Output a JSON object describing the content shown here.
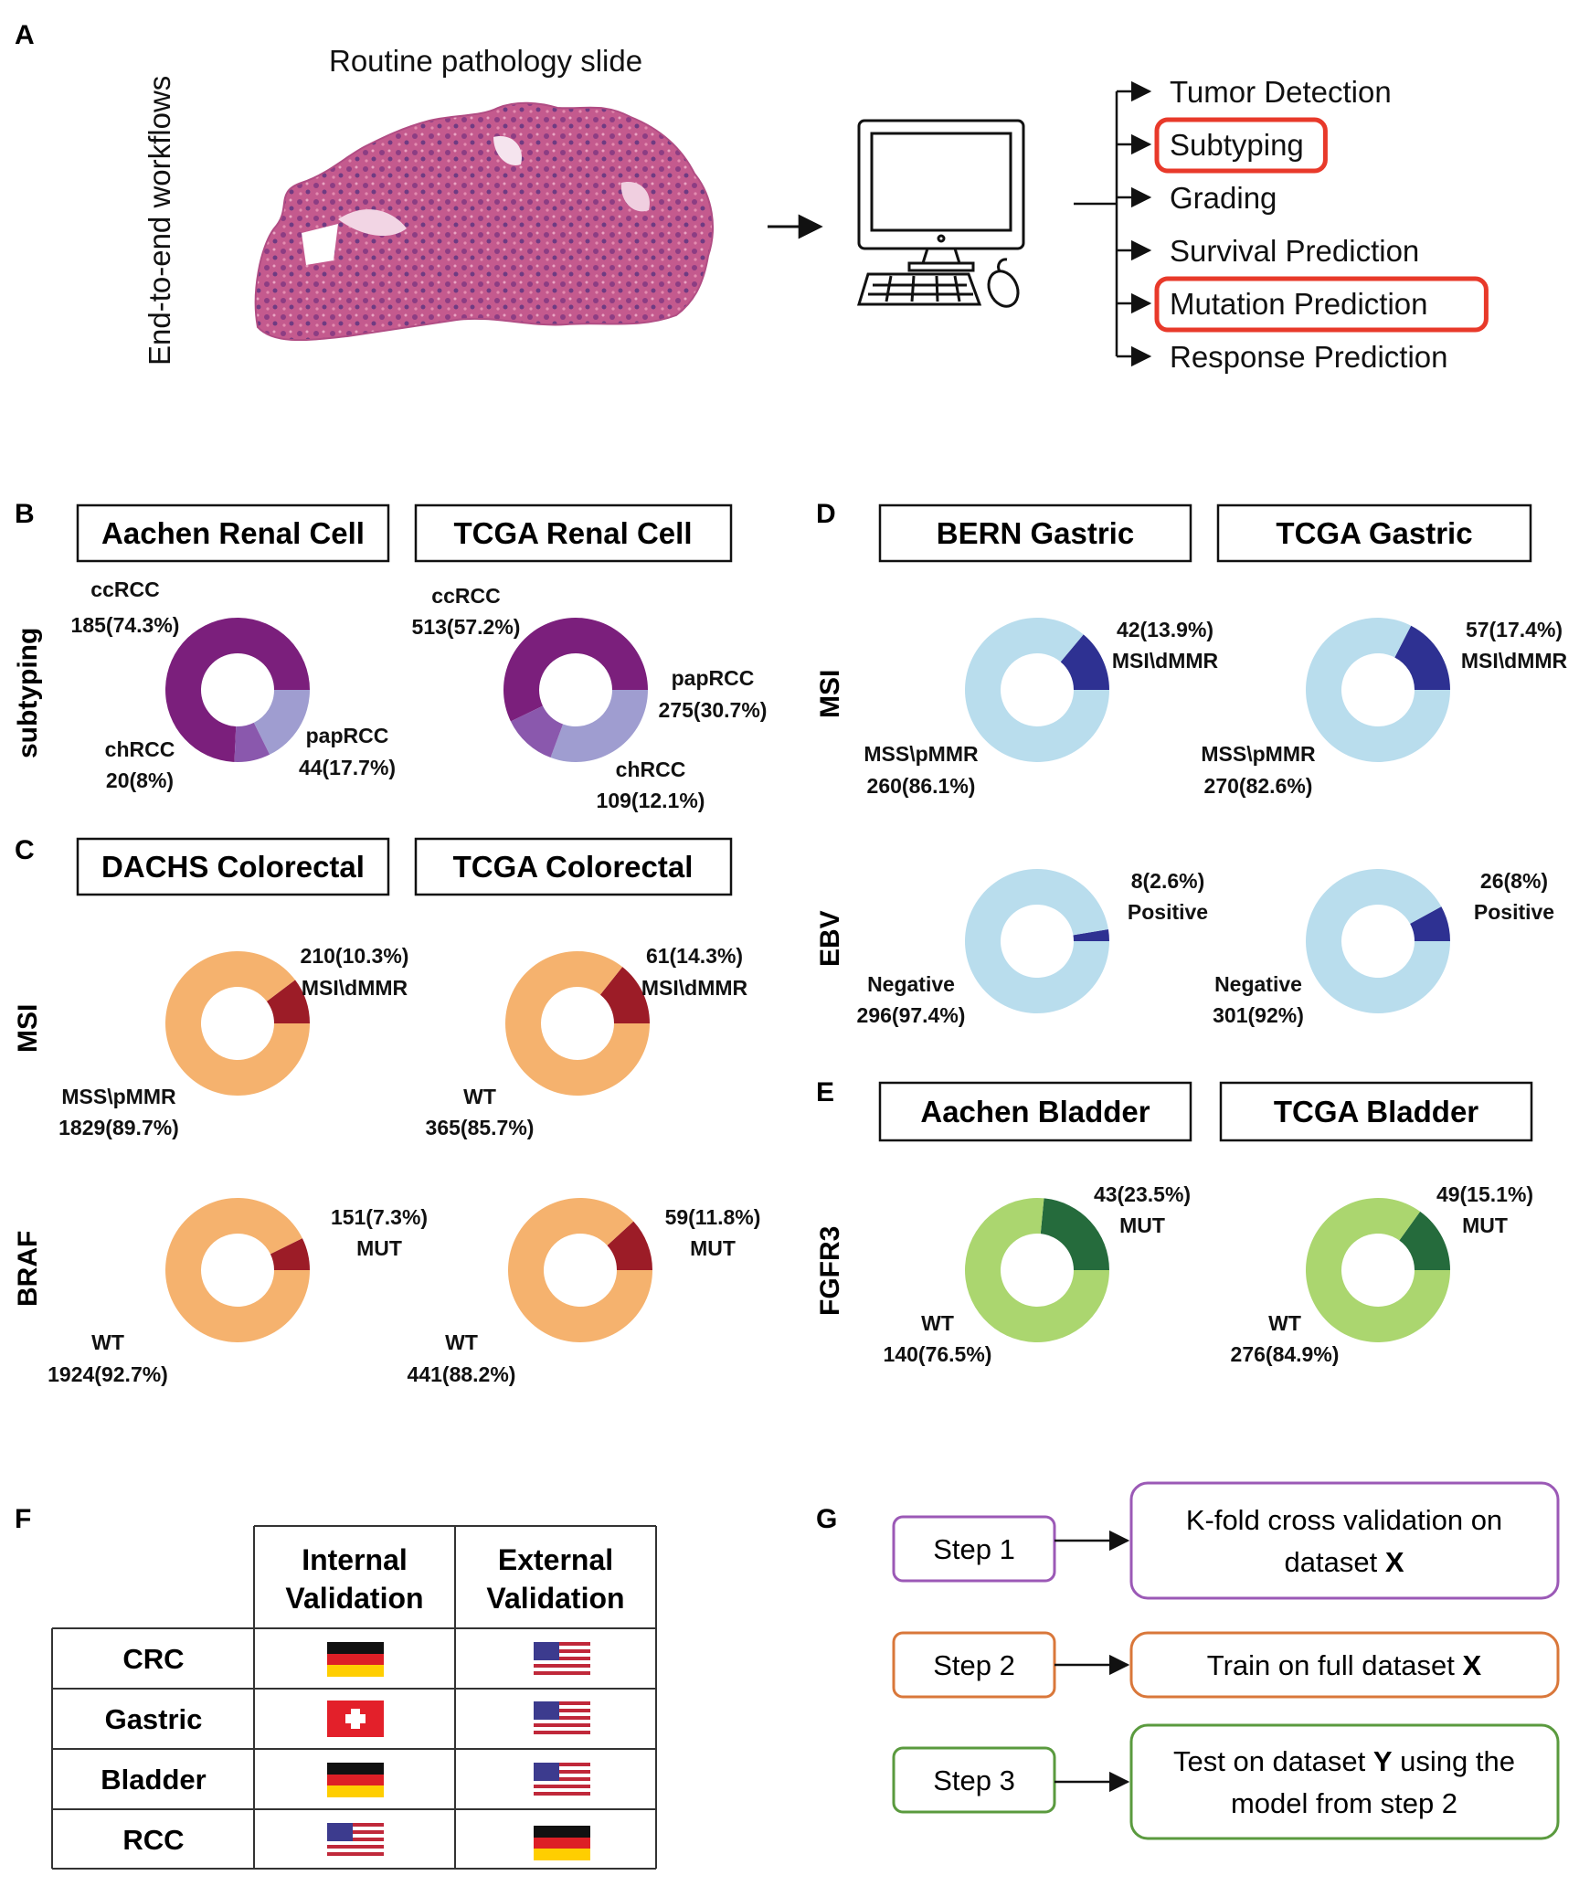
{
  "panel_labels": {
    "a": "A",
    "b": "B",
    "c": "C",
    "d": "D",
    "e": "E",
    "f": "F",
    "g": "G"
  },
  "workflow": {
    "side_label": "End-to-end workflows",
    "slide_title": "Routine pathology slide",
    "outputs": [
      "Tumor Detection",
      "Subtyping",
      "Grading",
      "Survival Prediction",
      "Mutation Prediction",
      "Response Prediction"
    ],
    "highlighted": [
      "Subtyping",
      "Mutation Prediction"
    ],
    "highlight_color": "#e8392a"
  },
  "colors": {
    "rcc_main": "#7b1f7c",
    "rcc_a": "#9f9dd0",
    "rcc_b": "#8a58ad",
    "crc_main": "#f5b26e",
    "crc_minor": "#9c1c27",
    "gastric_main": "#b9dded",
    "gastric_minor": "#2e3192",
    "bladder_main": "#abd66f",
    "bladder_minor": "#256b3c"
  },
  "datasets": {
    "aachen_rcc": "Aachen Renal Cell",
    "tcga_rcc": "TCGA Renal Cell",
    "dachs_crc": "DACHS Colorectal",
    "tcga_crc": "TCGA Colorectal",
    "bern_gastric": "BERN Gastric",
    "tcga_gastric": "TCGA Gastric",
    "aachen_bladder": "Aachen Bladder",
    "tcga_bladder": "TCGA Bladder"
  },
  "row_labels": {
    "subtyping": "subtyping",
    "msi_c": "MSI",
    "braf": "BRAF",
    "msi_d": "MSI",
    "ebv": "EBV",
    "fgfr3": "FGFR3"
  },
  "chart_data": [
    {
      "type": "pie",
      "title": "Aachen Renal Cell",
      "labels": [
        "ccRCC",
        "papRCC",
        "chRCC"
      ],
      "values": [
        185,
        44,
        20
      ],
      "percent": [
        74.3,
        17.7,
        8
      ],
      "text": {
        "ccrcc_name": "ccRCC",
        "ccrcc_val": "185(74.3%)",
        "paprcc_name": "papRCC",
        "paprcc_val": "44(17.7%)",
        "chrcc_name": "chRCC",
        "chrcc_val": "20(8%)"
      }
    },
    {
      "type": "pie",
      "title": "TCGA Renal Cell",
      "labels": [
        "ccRCC",
        "papRCC",
        "chRCC"
      ],
      "values": [
        513,
        275,
        109
      ],
      "percent": [
        57.2,
        30.7,
        12.1
      ],
      "text": {
        "ccrcc_name": "ccRCC",
        "ccrcc_val": "513(57.2%)",
        "paprcc_name": "papRCC",
        "paprcc_val": "275(30.7%)",
        "chrcc_name": "chRCC",
        "chrcc_val": "109(12.1%)"
      }
    },
    {
      "type": "pie",
      "title": "DACHS Colorectal",
      "row": "MSI",
      "labels": [
        "MSI\\dMMR",
        "MSS\\pMMR"
      ],
      "values": [
        210,
        1829
      ],
      "percent": [
        10.3,
        89.7
      ],
      "text": {
        "minor_val": "210(10.3%)",
        "minor_name": "MSI\\dMMR",
        "major_name": "MSS\\pMMR",
        "major_val": "1829(89.7%)"
      }
    },
    {
      "type": "pie",
      "title": "TCGA Colorectal",
      "row": "MSI",
      "labels": [
        "MSI\\dMMR",
        "WT"
      ],
      "values": [
        61,
        365
      ],
      "percent": [
        14.3,
        85.7
      ],
      "text": {
        "minor_val": "61(14.3%)",
        "minor_name": "MSI\\dMMR",
        "major_name": "WT",
        "major_val": "365(85.7%)"
      }
    },
    {
      "type": "pie",
      "title": "DACHS Colorectal",
      "row": "BRAF",
      "labels": [
        "MUT",
        "WT"
      ],
      "values": [
        151,
        1924
      ],
      "percent": [
        7.3,
        92.7
      ],
      "text": {
        "minor_val": "151(7.3%)",
        "minor_name": "MUT",
        "major_name": "WT",
        "major_val": "1924(92.7%)"
      }
    },
    {
      "type": "pie",
      "title": "TCGA Colorectal",
      "row": "BRAF",
      "labels": [
        "MUT",
        "WT"
      ],
      "values": [
        59,
        441
      ],
      "percent": [
        11.8,
        88.2
      ],
      "text": {
        "minor_val": "59(11.8%)",
        "minor_name": "MUT",
        "major_name": "WT",
        "major_val": "441(88.2%)"
      }
    },
    {
      "type": "pie",
      "title": "BERN Gastric",
      "row": "MSI",
      "labels": [
        "MSI\\dMMR",
        "MSS\\pMMR"
      ],
      "values": [
        42,
        260
      ],
      "percent": [
        13.9,
        86.1
      ],
      "text": {
        "minor_val": "42(13.9%)",
        "minor_name": "MSI\\dMMR",
        "major_name": "MSS\\pMMR",
        "major_val": "260(86.1%)"
      }
    },
    {
      "type": "pie",
      "title": "TCGA Gastric",
      "row": "MSI",
      "labels": [
        "MSI\\dMMR",
        "MSS\\pMMR"
      ],
      "values": [
        57,
        270
      ],
      "percent": [
        17.4,
        82.6
      ],
      "text": {
        "minor_val": "57(17.4%)",
        "minor_name": "MSI\\dMMR",
        "major_name": "MSS\\pMMR",
        "major_val": "270(82.6%)"
      }
    },
    {
      "type": "pie",
      "title": "BERN Gastric",
      "row": "EBV",
      "labels": [
        "Positive",
        "Negative"
      ],
      "values": [
        8,
        296
      ],
      "percent": [
        2.6,
        97.4
      ],
      "text": {
        "minor_val": "8(2.6%)",
        "minor_name": "Positive",
        "major_name": "Negative",
        "major_val": "296(97.4%)"
      }
    },
    {
      "type": "pie",
      "title": "TCGA Gastric",
      "row": "EBV",
      "labels": [
        "Positive",
        "Negative"
      ],
      "values": [
        26,
        301
      ],
      "percent": [
        8,
        92
      ],
      "text": {
        "minor_val": "26(8%)",
        "minor_name": "Positive",
        "major_name": "Negative",
        "major_val": "301(92%)"
      }
    },
    {
      "type": "pie",
      "title": "Aachen Bladder",
      "row": "FGFR3",
      "labels": [
        "MUT",
        "WT"
      ],
      "values": [
        43,
        140
      ],
      "percent": [
        23.5,
        76.5
      ],
      "text": {
        "minor_val": "43(23.5%)",
        "minor_name": "MUT",
        "major_name": "WT",
        "major_val": "140(76.5%)"
      }
    },
    {
      "type": "pie",
      "title": "TCGA Bladder",
      "row": "FGFR3",
      "labels": [
        "MUT",
        "WT"
      ],
      "values": [
        49,
        276
      ],
      "percent": [
        15.1,
        84.9
      ],
      "text": {
        "minor_val": "49(15.1%)",
        "minor_name": "MUT",
        "major_name": "WT",
        "major_val": "276(84.9%)"
      }
    }
  ],
  "validation_table": {
    "headers": [
      [
        "Internal",
        "Validation"
      ],
      [
        "External",
        "Validation"
      ]
    ],
    "rows": [
      {
        "label": "CRC",
        "internal": "germany-flag",
        "external": "usa-flag"
      },
      {
        "label": "Gastric",
        "internal": "switzerland-flag",
        "external": "usa-flag"
      },
      {
        "label": "Bladder",
        "internal": "germany-flag",
        "external": "usa-flag"
      },
      {
        "label": "RCC",
        "internal": "usa-flag",
        "external": "germany-flag"
      }
    ]
  },
  "steps": [
    {
      "step": "Step 1",
      "color": "#9b59b6",
      "desc_lines": [
        [
          {
            "t": "K-fold cross validation on",
            "b": false
          }
        ],
        [
          {
            "t": "dataset ",
            "b": false
          },
          {
            "t": "X",
            "b": true
          }
        ]
      ]
    },
    {
      "step": "Step 2",
      "color": "#d9773a",
      "desc_lines": [
        [
          {
            "t": "Train on full dataset ",
            "b": false
          },
          {
            "t": "X",
            "b": true
          }
        ]
      ]
    },
    {
      "step": "Step 3",
      "color": "#5a9a3e",
      "desc_lines": [
        [
          {
            "t": "Test on dataset ",
            "b": false
          },
          {
            "t": "Y",
            "b": true
          },
          {
            "t": " using the",
            "b": false
          }
        ],
        [
          {
            "t": "model from step 2",
            "b": false
          }
        ]
      ]
    }
  ]
}
